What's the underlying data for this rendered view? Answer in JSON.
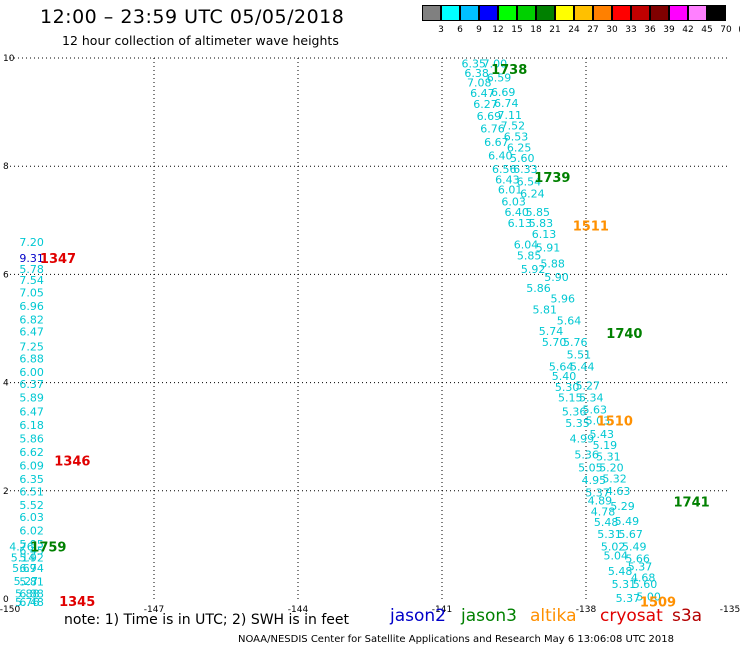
{
  "header": {
    "title": "12:00 – 23:59 UTC 05/05/2018",
    "subtitle": "12 hour collection of altimeter wave heights"
  },
  "colorbar": {
    "colors": [
      "#808080",
      "#00ffff",
      "#00c0ff",
      "#0000ff",
      "#00ff00",
      "#00d000",
      "#008000",
      "#ffff00",
      "#ffc000",
      "#ff8000",
      "#ff0000",
      "#c00000",
      "#800000",
      "#ff00ff",
      "#ff80ff",
      "#000000"
    ],
    "labels": [
      "3",
      "6",
      "9",
      "12",
      "15",
      "18",
      "21",
      "24",
      "27",
      "30",
      "33",
      "36",
      "39",
      "42",
      "45",
      "70",
      "(ft)"
    ]
  },
  "axes": {
    "x_ticks": [
      "-150",
      "-147",
      "-144",
      "-141",
      "-138",
      "-135"
    ],
    "x_values": [
      -150,
      -147,
      -144,
      -141,
      -138,
      -135
    ],
    "y_ticks": [
      "0",
      "2",
      "4",
      "6",
      "8",
      "10"
    ],
    "y_values": [
      0,
      2,
      4,
      6,
      8,
      10
    ],
    "xlim": [
      -150,
      -135
    ],
    "ylim": [
      0,
      10
    ]
  },
  "colors": {
    "cyan": "#00c8d2",
    "blue": "#0000c8",
    "red": "#e00000",
    "green": "#008000",
    "orange": "#ff9000",
    "darkred": "#b40000"
  },
  "map_data": {
    "time_labels": [
      {
        "text": "1345",
        "lon": -148.6,
        "lat": -0.04,
        "color": "red"
      },
      {
        "text": "1346",
        "lon": -148.7,
        "lat": 2.56,
        "color": "red"
      },
      {
        "text": "1347",
        "lon": -149.0,
        "lat": 6.3,
        "color": "red"
      },
      {
        "text": "1759",
        "lon": -149.2,
        "lat": 0.97,
        "color": "green"
      },
      {
        "text": "1738",
        "lon": -139.6,
        "lat": 9.8,
        "color": "green"
      },
      {
        "text": "1739",
        "lon": -138.7,
        "lat": 7.8,
        "color": "green"
      },
      {
        "text": "1740",
        "lon": -137.2,
        "lat": 4.92,
        "color": "green"
      },
      {
        "text": "1741",
        "lon": -135.8,
        "lat": 1.8,
        "color": "green"
      },
      {
        "text": "1511",
        "lon": -137.9,
        "lat": 6.9,
        "color": "orange"
      },
      {
        "text": "1510",
        "lon": -137.4,
        "lat": 3.3,
        "color": "orange"
      },
      {
        "text": "1509",
        "lon": -136.5,
        "lat": -0.05,
        "color": "orange"
      }
    ],
    "track_A": [
      {
        "v": "7.20",
        "lat": 6.6,
        "color": "cyan"
      },
      {
        "v": "9.31",
        "lat": 6.3,
        "color": "blue"
      },
      {
        "v": "5.78",
        "lat": 6.1
      },
      {
        "v": "7.54",
        "lat": 5.9
      },
      {
        "v": "7.05",
        "lat": 5.67
      },
      {
        "v": "6.96",
        "lat": 5.42
      },
      {
        "v": "6.82",
        "lat": 5.17
      },
      {
        "v": "6.47",
        "lat": 4.94
      },
      {
        "v": "7.25",
        "lat": 4.67
      },
      {
        "v": "6.88",
        "lat": 4.45
      },
      {
        "v": "6.00",
        "lat": 4.2
      },
      {
        "v": "6.37",
        "lat": 3.97
      },
      {
        "v": "5.89",
        "lat": 3.72
      },
      {
        "v": "6.47",
        "lat": 3.47
      },
      {
        "v": "6.18",
        "lat": 3.22
      },
      {
        "v": "5.86",
        "lat": 2.97
      },
      {
        "v": "6.62",
        "lat": 2.72
      },
      {
        "v": "6.09",
        "lat": 2.47
      },
      {
        "v": "6.35",
        "lat": 2.22
      },
      {
        "v": "6.51",
        "lat": 1.99
      },
      {
        "v": "5.52",
        "lat": 1.74
      },
      {
        "v": "6.03",
        "lat": 1.52
      },
      {
        "v": "6.02",
        "lat": 1.27
      },
      {
        "v": "5.95",
        "lat": 1.02
      },
      {
        "v": "5.92",
        "lat": 0.77
      },
      {
        "v": "4.76",
        "lat": 0.97,
        "dx": -0.7
      },
      {
        "v": "6.45",
        "lat": 0.9
      },
      {
        "v": "5.14",
        "lat": 0.77,
        "dx": -0.6
      },
      {
        "v": "6.74",
        "lat": 0.57
      },
      {
        "v": "5.69",
        "lat": 0.57,
        "dx": -0.5
      },
      {
        "v": "5.81",
        "lat": 0.32
      },
      {
        "v": "5.27",
        "lat": 0.33,
        "dx": -0.4
      },
      {
        "v": "6.88",
        "lat": 0.1
      },
      {
        "v": "5.88",
        "lat": 0.1,
        "dx": -0.3
      },
      {
        "v": "6.48",
        "lat": -0.06
      },
      {
        "v": "5.76",
        "lat": -0.06,
        "dx": -0.3
      }
    ],
    "track_B": [
      {
        "v": "6.35",
        "lat": 9.9
      },
      {
        "v": "7.00",
        "lat": 9.9
      },
      {
        "v": "6.38",
        "lat": 9.72
      },
      {
        "v": "6.59",
        "lat": 9.64
      },
      {
        "v": "7.08",
        "lat": 9.55
      },
      {
        "v": "6.69",
        "lat": 9.37
      },
      {
        "v": "6.47",
        "lat": 9.35
      },
      {
        "v": "6.74",
        "lat": 9.17
      },
      {
        "v": "6.27",
        "lat": 9.15
      },
      {
        "v": "7.11",
        "lat": 8.95
      },
      {
        "v": "6.69",
        "lat": 8.93
      },
      {
        "v": "7.52",
        "lat": 8.75
      },
      {
        "v": "6.76",
        "lat": 8.7
      },
      {
        "v": "6.53",
        "lat": 8.55
      },
      {
        "v": "6.67",
        "lat": 8.45
      },
      {
        "v": "6.25",
        "lat": 8.35
      },
      {
        "v": "6.40",
        "lat": 8.2
      },
      {
        "v": "5.60",
        "lat": 8.15
      },
      {
        "v": "6.56",
        "lat": 7.95
      },
      {
        "v": "6.33",
        "lat": 7.95
      },
      {
        "v": "6.43",
        "lat": 7.75
      },
      {
        "v": "6.54",
        "lat": 7.72
      },
      {
        "v": "6.01",
        "lat": 7.57
      },
      {
        "v": "6.24",
        "lat": 7.5
      },
      {
        "v": "6.03",
        "lat": 7.35
      },
      {
        "v": "5.85",
        "lat": 7.15
      },
      {
        "v": "6.40",
        "lat": 7.15
      },
      {
        "v": "5.83",
        "lat": 6.95
      },
      {
        "v": "6.13",
        "lat": 6.95
      },
      {
        "v": "6.13",
        "lat": 6.75
      },
      {
        "v": "6.04",
        "lat": 6.55
      },
      {
        "v": "5.91",
        "lat": 6.5
      },
      {
        "v": "5.85",
        "lat": 6.35
      },
      {
        "v": "5.88",
        "lat": 6.2
      },
      {
        "v": "5.92",
        "lat": 6.1
      },
      {
        "v": "5.90",
        "lat": 5.95
      },
      {
        "v": "5.86",
        "lat": 5.75
      },
      {
        "v": "5.96",
        "lat": 5.55
      },
      {
        "v": "5.81",
        "lat": 5.35
      },
      {
        "v": "5.64",
        "lat": 5.15
      },
      {
        "v": "5.74",
        "lat": 4.95
      },
      {
        "v": "5.76",
        "lat": 4.75
      },
      {
        "v": "5.70",
        "lat": 4.75
      },
      {
        "v": "5.51",
        "lat": 4.52
      },
      {
        "v": "5.64",
        "lat": 4.3
      },
      {
        "v": "5.44",
        "lat": 4.3
      },
      {
        "v": "5.40",
        "lat": 4.12
      },
      {
        "v": "5.27",
        "lat": 3.95
      },
      {
        "v": "5.30",
        "lat": 3.92
      },
      {
        "v": "5.34",
        "lat": 3.72
      },
      {
        "v": "5.15",
        "lat": 3.72
      },
      {
        "v": "5.63",
        "lat": 3.5
      },
      {
        "v": "5.36",
        "lat": 3.47
      },
      {
        "v": "5.03",
        "lat": 3.3
      },
      {
        "v": "5.35",
        "lat": 3.25
      },
      {
        "v": "5.43",
        "lat": 3.05
      },
      {
        "v": "4.99",
        "lat": 2.97
      },
      {
        "v": "5.19",
        "lat": 2.85
      },
      {
        "v": "5.36",
        "lat": 2.67
      },
      {
        "v": "5.31",
        "lat": 2.63
      },
      {
        "v": "5.05",
        "lat": 2.43
      },
      {
        "v": "5.20",
        "lat": 2.43
      },
      {
        "v": "4.95",
        "lat": 2.2
      },
      {
        "v": "5.32",
        "lat": 2.23
      },
      {
        "v": "5.37",
        "lat": 1.97
      },
      {
        "v": "4.63",
        "lat": 2.0
      },
      {
        "v": "4.89",
        "lat": 1.82
      },
      {
        "v": "5.29",
        "lat": 1.72
      },
      {
        "v": "4.78",
        "lat": 1.62
      },
      {
        "v": "5.49",
        "lat": 1.44
      },
      {
        "v": "5.48",
        "lat": 1.42
      },
      {
        "v": "5.67",
        "lat": 1.2
      },
      {
        "v": "5.31",
        "lat": 1.2
      },
      {
        "v": "5.49",
        "lat": 0.97
      },
      {
        "v": "5.02",
        "lat": 0.97
      },
      {
        "v": "5.66",
        "lat": 0.75
      },
      {
        "v": "5.04",
        "lat": 0.8
      },
      {
        "v": "5.37",
        "lat": 0.6
      },
      {
        "v": "5.48",
        "lat": 0.52
      },
      {
        "v": "4.68",
        "lat": 0.4
      },
      {
        "v": "5.31",
        "lat": 0.28
      },
      {
        "v": "5.60",
        "lat": 0.28
      },
      {
        "v": "5.37",
        "lat": 0.02
      },
      {
        "v": "5.00",
        "lat": 0.05
      }
    ]
  },
  "footer": {
    "note": "note:  1) Time is in UTC; 2) SWH is in feet",
    "legend": [
      {
        "name": "jason2",
        "color": "#0000c8"
      },
      {
        "name": "jason3",
        "color": "#008000"
      },
      {
        "name": "altika",
        "color": "#ff9000"
      },
      {
        "name": "cryosat",
        "color": "#e00000"
      },
      {
        "name": "s3a",
        "color": "#b40000"
      }
    ],
    "credit": "NOAA/NESDIS Center for Satellite Applications and Research      May  6 13:06:08 UTC 2018"
  }
}
